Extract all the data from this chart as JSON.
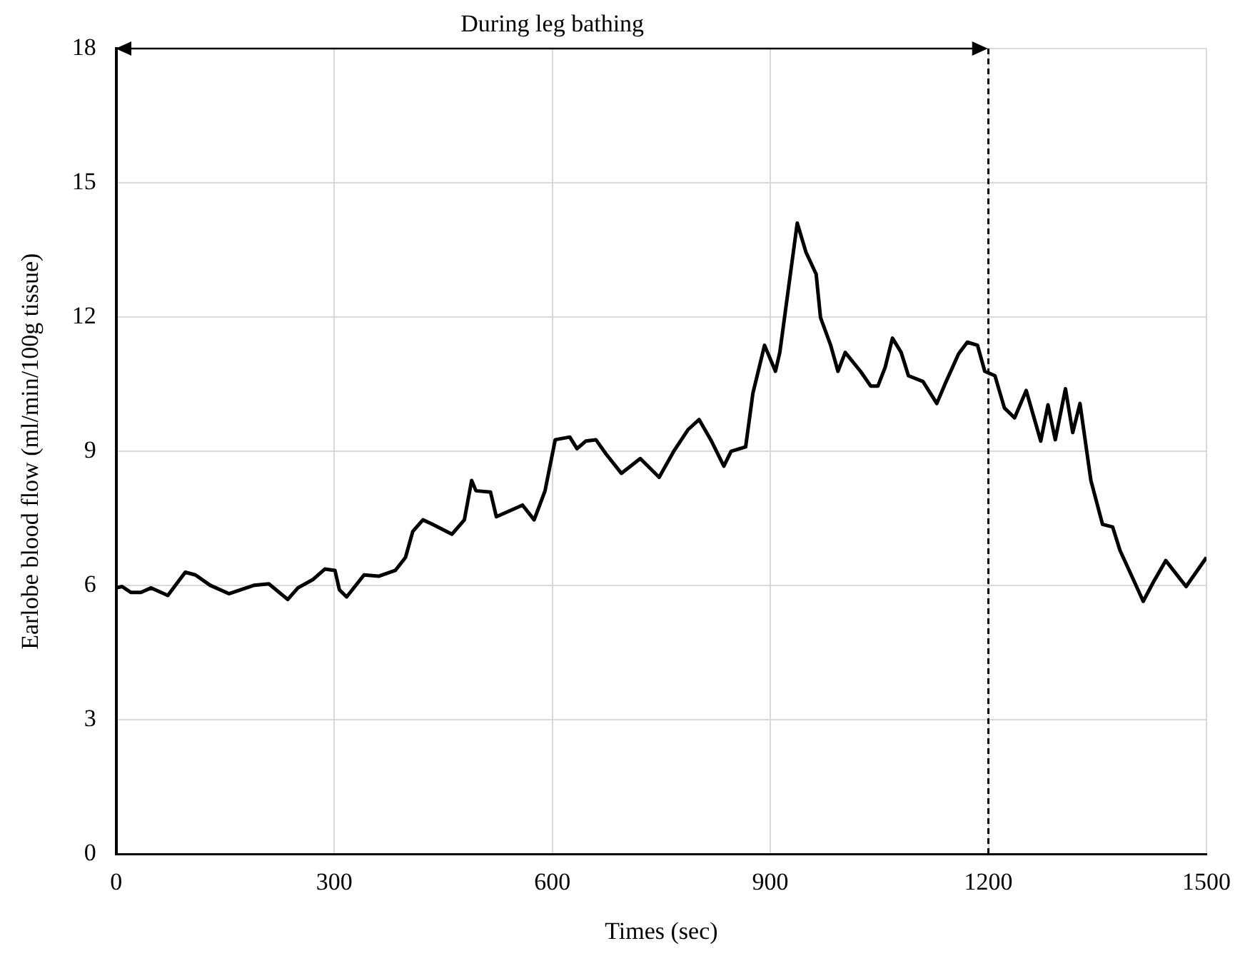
{
  "chart_data": {
    "type": "line",
    "xlabel": "Times (sec)",
    "ylabel": "Earlobe blood flow (ml/min/100g tissue)",
    "xlim": [
      0,
      1500
    ],
    "xticks": [
      0,
      300,
      600,
      900,
      1200,
      1500
    ],
    "ylim": [
      0,
      18
    ],
    "yticks": [
      0,
      3,
      6,
      9,
      12,
      15,
      18
    ],
    "grid": true,
    "legend": false,
    "marker": "none",
    "line_style": "solid",
    "annotations": [
      "During leg bathing"
    ],
    "ref_lines": [
      {
        "axis": "x",
        "value": 1200,
        "color": "#000000",
        "line_style": "dashed"
      }
    ],
    "series": [
      {
        "color": "#000000",
        "x": [
          0,
          8,
          20,
          34,
          48,
          71,
          95,
          109,
          129,
          155,
          190,
          210,
          236,
          250,
          271,
          287,
          301,
          307,
          317,
          341,
          361,
          384,
          398,
          408,
          422,
          434,
          462,
          479,
          489,
          495,
          515,
          523,
          559,
          575,
          590,
          604,
          624,
          634,
          646,
          660,
          674,
          695,
          721,
          747,
          767,
          787,
          802,
          818,
          836,
          846,
          866,
          876,
          892,
          907,
          913,
          937,
          949,
          963,
          969,
          983,
          993,
          1003,
          1024,
          1038,
          1048,
          1058,
          1068,
          1080,
          1090,
          1110,
          1129,
          1141,
          1159,
          1171,
          1185,
          1195,
          1209,
          1222,
          1236,
          1252,
          1272,
          1282,
          1292,
          1306,
          1316,
          1326,
          1341,
          1357,
          1371,
          1381,
          1401,
          1413,
          1427,
          1444,
          1472,
          1500
        ],
        "values": [
          5.95,
          5.98,
          5.85,
          5.85,
          5.95,
          5.78,
          6.3,
          6.24,
          6.01,
          5.82,
          6.01,
          6.04,
          5.69,
          5.95,
          6.14,
          6.37,
          6.34,
          5.91,
          5.75,
          6.24,
          6.21,
          6.34,
          6.63,
          7.21,
          7.47,
          7.38,
          7.15,
          7.47,
          8.35,
          8.12,
          8.09,
          7.54,
          7.8,
          7.47,
          8.12,
          9.26,
          9.32,
          9.06,
          9.23,
          9.26,
          8.94,
          8.51,
          8.84,
          8.42,
          9.0,
          9.49,
          9.71,
          9.26,
          8.67,
          9.0,
          9.1,
          10.3,
          11.37,
          10.79,
          11.21,
          14.1,
          13.45,
          12.96,
          11.99,
          11.37,
          10.79,
          11.21,
          10.79,
          10.46,
          10.46,
          10.88,
          11.53,
          11.21,
          10.69,
          10.56,
          10.07,
          10.53,
          11.18,
          11.44,
          11.37,
          10.79,
          10.69,
          9.97,
          9.75,
          10.36,
          9.23,
          10.04,
          9.26,
          10.4,
          9.42,
          10.07,
          8.35,
          7.37,
          7.31,
          6.79,
          6.08,
          5.65,
          6.08,
          6.56,
          5.98,
          6.63
        ]
      }
    ]
  }
}
